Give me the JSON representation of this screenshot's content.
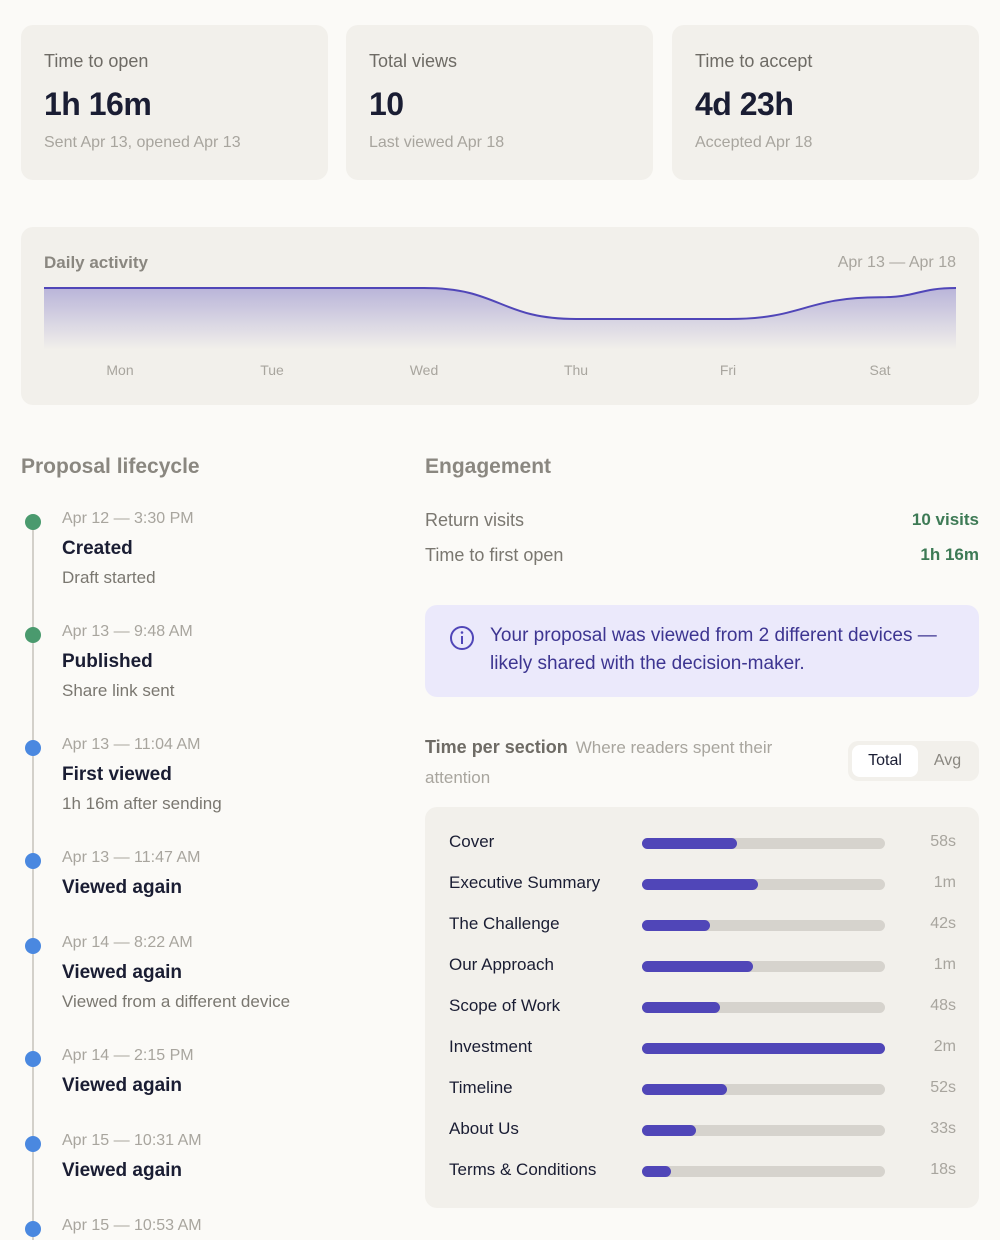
{
  "stats": [
    {
      "label": "Time to open",
      "value": "1h 16m",
      "sub": "Sent Apr 13, opened Apr 13"
    },
    {
      "label": "Total views",
      "value": "10",
      "sub": "Last viewed Apr 18"
    },
    {
      "label": "Time to accept",
      "value": "4d 23h",
      "sub": "Accepted Apr 18"
    }
  ],
  "activity": {
    "title": "Daily activity",
    "range": "Apr 13 — Apr 18",
    "categories": [
      "Mon",
      "Tue",
      "Wed",
      "Thu",
      "Fri",
      "Sat"
    ],
    "values": [
      2,
      2,
      2,
      1,
      1,
      1.7
    ],
    "color": "#5046b8"
  },
  "lifecycle": {
    "title": "Proposal lifecycle",
    "events": [
      {
        "date": "Apr 12 — 3:30 PM",
        "title": "Created",
        "desc": "Draft started",
        "color": "#4a9a6e"
      },
      {
        "date": "Apr 13 — 9:48 AM",
        "title": "Published",
        "desc": "Share link sent",
        "color": "#4a9a6e"
      },
      {
        "date": "Apr 13 — 11:04 AM",
        "title": "First viewed",
        "desc": "1h 16m after sending",
        "color": "#4a88e0"
      },
      {
        "date": "Apr 13 — 11:47 AM",
        "title": "Viewed again",
        "color": "#4a88e0"
      },
      {
        "date": "Apr 14 — 8:22 AM",
        "title": "Viewed again",
        "desc": "Viewed from a different device",
        "color": "#4a88e0"
      },
      {
        "date": "Apr 14 — 2:15 PM",
        "title": "Viewed again",
        "color": "#4a88e0"
      },
      {
        "date": "Apr 15 — 10:31 AM",
        "title": "Viewed again",
        "color": "#4a88e0"
      },
      {
        "date": "Apr 15 — 10:53 AM",
        "color": "#4a88e0"
      }
    ]
  },
  "engagement": {
    "title": "Engagement",
    "rows": [
      {
        "label": "Return visits",
        "value": "10 visits"
      },
      {
        "label": "Time to first open",
        "value": "1h 16m"
      }
    ],
    "callout": "Your proposal was viewed from 2 different devices — likely shared with the decision-maker."
  },
  "sections": {
    "title": "Time per section",
    "subtitle": "Where readers spent their attention",
    "toggle": [
      "Total",
      "Avg"
    ],
    "color": "#5046b8",
    "names": [
      "Cover",
      "Executive Summary",
      "The Challenge",
      "Our Approach",
      "Scope of Work",
      "Investment",
      "Timeline",
      "About Us",
      "Terms & Conditions"
    ],
    "values": [
      58,
      71,
      42,
      68,
      48,
      149,
      52,
      33,
      18
    ],
    "value_labels": [
      "58s",
      "1m",
      "42s",
      "1m",
      "48s",
      "2m",
      "52s",
      "33s",
      "18s"
    ]
  }
}
